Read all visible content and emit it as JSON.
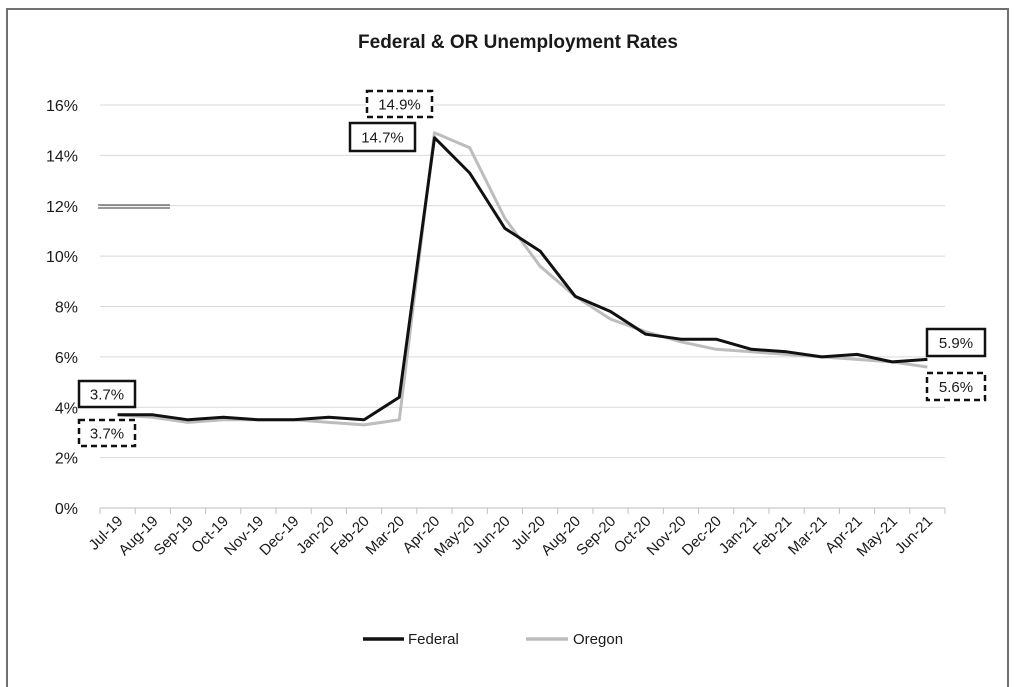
{
  "chart_data": {
    "type": "line",
    "title": "Federal & OR Unemployment Rates",
    "xlabel": "",
    "ylabel": "",
    "ylim": [
      0,
      16
    ],
    "yticks": [
      0,
      2,
      4,
      6,
      8,
      10,
      12,
      14,
      16
    ],
    "ytick_format": "%",
    "grid": "horizontal",
    "legend": "bottom-center",
    "categories": [
      "Jul-19",
      "Aug-19",
      "Sep-19",
      "Oct-19",
      "Nov-19",
      "Dec-19",
      "Jan-20",
      "Feb-20",
      "Mar-20",
      "Apr-20",
      "May-20",
      "Jun-20",
      "Jul-20",
      "Aug-20",
      "Sep-20",
      "Oct-20",
      "Nov-20",
      "Dec-20",
      "Jan-21",
      "Feb-21",
      "Mar-21",
      "Apr-21",
      "May-21",
      "Jun-21"
    ],
    "series": [
      {
        "name": "Federal",
        "color": "#111111",
        "values": [
          3.7,
          3.7,
          3.5,
          3.6,
          3.5,
          3.5,
          3.6,
          3.5,
          4.4,
          14.7,
          13.3,
          11.1,
          10.2,
          8.4,
          7.8,
          6.9,
          6.7,
          6.7,
          6.3,
          6.2,
          6.0,
          6.1,
          5.8,
          5.9
        ]
      },
      {
        "name": "Oregon",
        "color": "#bdbdbd",
        "values": [
          3.7,
          3.6,
          3.4,
          3.5,
          3.5,
          3.5,
          3.4,
          3.3,
          3.5,
          14.9,
          14.3,
          11.5,
          9.6,
          8.4,
          7.5,
          7.0,
          6.6,
          6.3,
          6.2,
          6.1,
          6.0,
          5.9,
          5.8,
          5.6
        ]
      }
    ],
    "annotations": [
      {
        "text": "3.7%",
        "series": 0,
        "index": 0,
        "style": "solid"
      },
      {
        "text": "3.7%",
        "series": 1,
        "index": 0,
        "style": "dashed"
      },
      {
        "text": "14.7%",
        "series": 0,
        "index": 9,
        "style": "solid"
      },
      {
        "text": "14.9%",
        "series": 1,
        "index": 9,
        "style": "dashed"
      },
      {
        "text": "5.9%",
        "series": 0,
        "index": 23,
        "style": "solid"
      },
      {
        "text": "5.6%",
        "series": 1,
        "index": 23,
        "style": "dashed"
      }
    ]
  }
}
